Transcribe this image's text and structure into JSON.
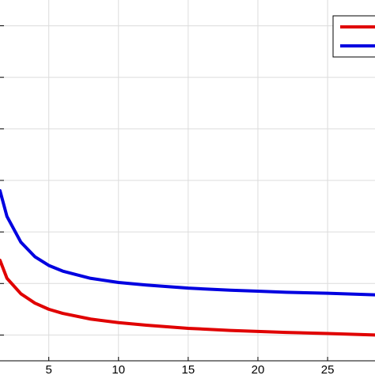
{
  "chart_data": {
    "type": "line",
    "title": "",
    "xlabel": "",
    "ylabel": "",
    "xlim": [
      1.5,
      28.4
    ],
    "ylim": [
      0.5,
      7.5
    ],
    "grid": true,
    "legend_position": "top-right",
    "x_ticks": [
      5,
      10,
      15,
      20,
      25
    ],
    "x_tick_labels": [
      "5",
      "10",
      "15",
      "20",
      "25"
    ],
    "y_ticks": [
      1,
      2,
      3,
      4,
      5,
      6,
      7
    ],
    "series": [
      {
        "color": "#e00000",
        "x": [
          1.5,
          2,
          3,
          4,
          5,
          6,
          8,
          10,
          12,
          15,
          18,
          20,
          22,
          25,
          28.4
        ],
        "y": [
          2.45,
          2.1,
          1.8,
          1.62,
          1.5,
          1.42,
          1.31,
          1.24,
          1.19,
          1.13,
          1.09,
          1.07,
          1.05,
          1.03,
          1.0
        ]
      },
      {
        "color": "#0000e0",
        "x": [
          1.5,
          2,
          3,
          4,
          5,
          6,
          8,
          10,
          12,
          15,
          18,
          20,
          22,
          25,
          28.4
        ],
        "y": [
          3.8,
          3.3,
          2.8,
          2.52,
          2.35,
          2.24,
          2.1,
          2.02,
          1.97,
          1.91,
          1.87,
          1.85,
          1.83,
          1.81,
          1.78
        ]
      }
    ]
  }
}
